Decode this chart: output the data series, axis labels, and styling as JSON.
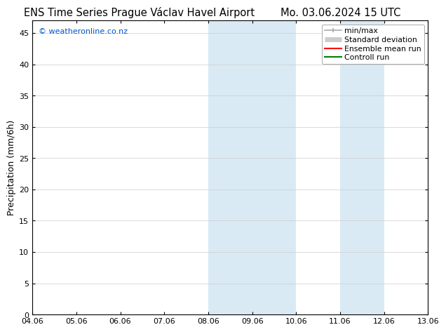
{
  "title_left": "ENS Time Series Prague Václav Havel Airport",
  "title_right": "Mo. 03.06.2024 15 UTC",
  "ylabel": "Precipitation (mm/6h)",
  "xlabel_ticks": [
    "04.06",
    "05.06",
    "06.06",
    "07.06",
    "08.06",
    "09.06",
    "10.06",
    "11.06",
    "12.06",
    "13.06"
  ],
  "xlim": [
    0,
    9
  ],
  "ylim": [
    0,
    47
  ],
  "yticks": [
    0,
    5,
    10,
    15,
    20,
    25,
    30,
    35,
    40,
    45
  ],
  "shaded_regions": [
    {
      "x_start": 4.0,
      "x_end": 5.0,
      "color": "#daeaf5"
    },
    {
      "x_start": 5.0,
      "x_end": 6.0,
      "color": "#daeaf5"
    },
    {
      "x_start": 7.0,
      "x_end": 8.0,
      "color": "#daeaf5"
    }
  ],
  "legend_entries": [
    {
      "label": "min/max",
      "color": "#aaaaaa",
      "lw": 1.2,
      "style": "line_with_caps"
    },
    {
      "label": "Standard deviation",
      "color": "#cccccc",
      "lw": 6,
      "style": "thick_line"
    },
    {
      "label": "Ensemble mean run",
      "color": "#ff0000",
      "lw": 1.5,
      "style": "line"
    },
    {
      "label": "Controll run",
      "color": "#008000",
      "lw": 1.5,
      "style": "line"
    }
  ],
  "watermark_text": "© weatheronline.co.nz",
  "watermark_color": "#0055cc",
  "bg_color": "#ffffff",
  "plot_bg_color": "#ffffff",
  "border_color": "#000000",
  "title_fontsize": 10.5,
  "axis_fontsize": 9,
  "tick_fontsize": 8,
  "legend_fontsize": 7.8
}
